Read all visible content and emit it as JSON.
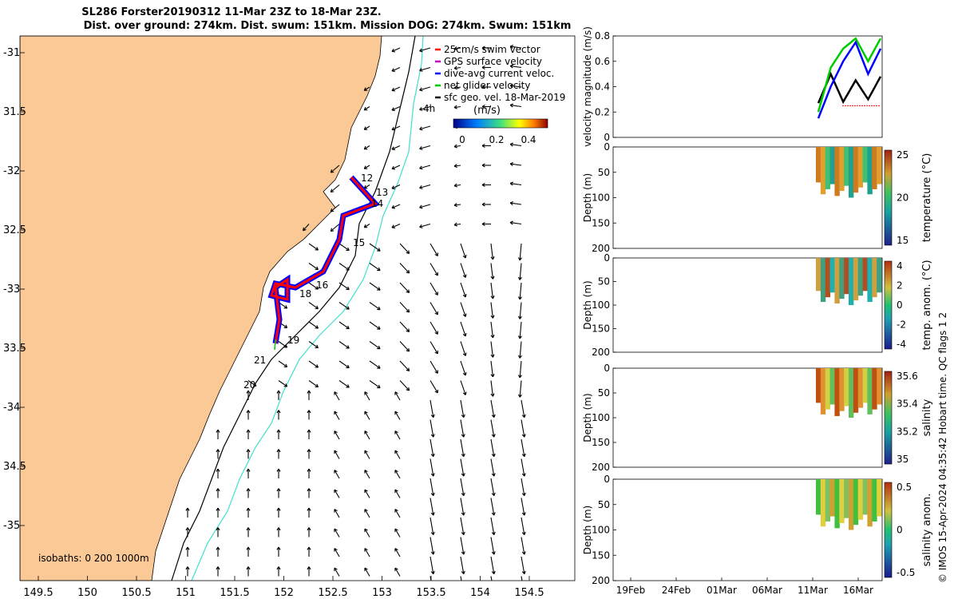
{
  "title_line1": "SL286 Forster20190312 11-Mar 23Z to 18-Mar 23Z.",
  "title_line2": "Dist. over ground: 274km. Dist. swum: 151km. Mission DOG: 274km. Swum: 151km",
  "map": {
    "lon_ticks": [
      "149.5",
      "150",
      "150.5",
      "151",
      "151.5",
      "152",
      "152.5",
      "153",
      "153.5",
      "154",
      "154.5"
    ],
    "lat_ticks": [
      "-31",
      "31.5",
      "-32",
      "32.5",
      "-33",
      "33.5",
      "-34",
      "34.5",
      "-35"
    ],
    "legend": [
      {
        "label": "25cm/s swim vector",
        "color": "#ff0000"
      },
      {
        "label": "GPS surface velocity",
        "color": "#cc00cc"
      },
      {
        "label": "dive-avg current veloc.",
        "color": "#0000ff"
      },
      {
        "label": "net glider velocity",
        "color": "#00cc00"
      },
      {
        "label": "sfc geo. vel. 18-Mar-2019",
        "color": "#000000"
      }
    ],
    "colorbar_label": "(m/s)",
    "colorbar_ticks": [
      "0",
      "0.2",
      "0.4"
    ],
    "isobaths_label": "isobaths: 0   200  1000m",
    "day_labels": [
      {
        "text": "4h"
      },
      {
        "text": "12"
      },
      {
        "text": "13"
      },
      {
        "text": "14"
      },
      {
        "text": "15"
      },
      {
        "text": "16"
      },
      {
        "text": "18"
      },
      {
        "text": "19"
      },
      {
        "text": "21"
      },
      {
        "text": "20"
      }
    ]
  },
  "colors": {
    "land": "#fbc996",
    "isobath_1000": "#40e0d0",
    "swim": "#ff0000",
    "current": "#0000ff",
    "net": "#00cc00"
  },
  "chart_data": [
    {
      "type": "line",
      "ylabel": "velocity magnitude (m/s)",
      "ylim": [
        0,
        0.8
      ],
      "yticks": [
        "0",
        "0.2",
        "0.4",
        "0.6",
        "0.8"
      ],
      "x": [
        "13-Mar",
        "14-Mar",
        "15-Mar",
        "16-Mar",
        "17-Mar",
        "18-Mar"
      ],
      "series": [
        {
          "values": [
            0.27,
            0.5,
            0.28,
            0.45,
            0.3,
            0.48
          ]
        },
        {
          "values": [
            0.2,
            0.55,
            0.7,
            0.78,
            0.6,
            0.78
          ]
        },
        {
          "values": [
            0.15,
            0.4,
            0.6,
            0.75,
            0.5,
            0.7
          ]
        }
      ]
    },
    {
      "type": "heatmap",
      "ylabel": "Depth (m)",
      "ylim": [
        0,
        200
      ],
      "yticks": [
        "0",
        "50",
        "100",
        "150",
        "200"
      ],
      "cbar_label": "temperature (°C)",
      "cbar_ticks": [
        "25",
        "20",
        "15"
      ]
    },
    {
      "type": "heatmap",
      "ylabel": "Depth (m)",
      "ylim": [
        0,
        200
      ],
      "yticks": [
        "0",
        "50",
        "100",
        "150",
        "200"
      ],
      "cbar_label": "temp. anom. (°C)",
      "cbar_ticks": [
        "4",
        "2",
        "0",
        "-2",
        "-4"
      ]
    },
    {
      "type": "heatmap",
      "ylabel": "Depth (m)",
      "ylim": [
        0,
        200
      ],
      "yticks": [
        "0",
        "50",
        "100",
        "150",
        "200"
      ],
      "cbar_label": "salinity",
      "cbar_ticks": [
        "35.6",
        "35.4",
        "35.2",
        "35"
      ]
    },
    {
      "type": "heatmap",
      "ylabel": "Depth (m)",
      "ylim": [
        0,
        200
      ],
      "yticks": [
        "0",
        "50",
        "100",
        "150",
        "200"
      ],
      "cbar_label": "salinity anom.",
      "cbar_ticks": [
        "0.5",
        "0",
        "-0.5"
      ],
      "xticks": [
        "19Feb",
        "24Feb",
        "01Mar",
        "06Mar",
        "11Mar",
        "16Mar"
      ]
    }
  ],
  "credit": "© IMOS 15-Apr-2024 04:35:42 Hobart time. QC flags 1  2"
}
